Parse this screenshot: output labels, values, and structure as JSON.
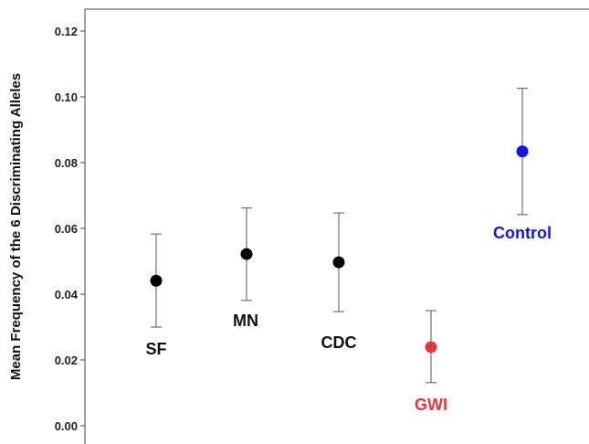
{
  "chart_data": {
    "type": "scatter",
    "ylabel": "Mean Frequency of the 6 Discriminating  Alleles",
    "ylim": [
      0.0,
      0.124
    ],
    "y_ticks": [
      "0.00",
      "0.02",
      "0.04",
      "0.06",
      "0.08",
      "0.10",
      "0.12"
    ],
    "y_tick_values": [
      0.0,
      0.02,
      0.04,
      0.06,
      0.08,
      0.1,
      0.12
    ],
    "grid": false,
    "groups": [
      {
        "label": "SF",
        "mean": 0.0441,
        "lower": 0.03,
        "upper": 0.0583,
        "color": "#000000"
      },
      {
        "label": "MN",
        "mean": 0.0522,
        "lower": 0.0381,
        "upper": 0.0662,
        "color": "#000000"
      },
      {
        "label": "CDC",
        "mean": 0.0497,
        "lower": 0.0347,
        "upper": 0.0647,
        "color": "#000000"
      },
      {
        "label": "GWI",
        "mean": 0.0239,
        "lower": 0.0131,
        "upper": 0.035,
        "color": "#e8343c"
      },
      {
        "label": "Control",
        "mean": 0.0834,
        "lower": 0.0642,
        "upper": 0.1026,
        "color": "#1414e6"
      }
    ]
  }
}
